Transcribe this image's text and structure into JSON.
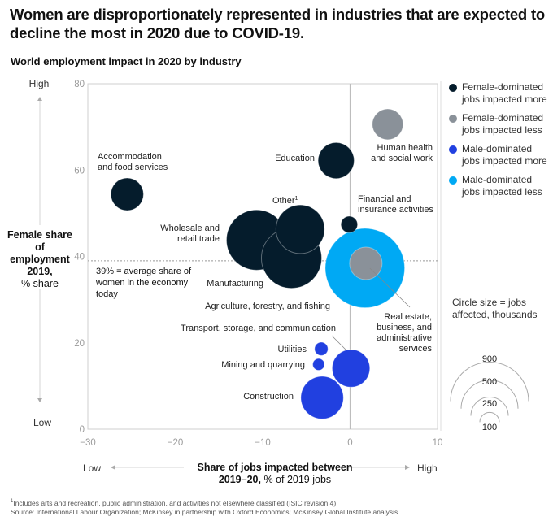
{
  "title": "Women are disproportionately represented in industries that are expected to decline the most in 2020 due to COVID-19.",
  "subtitle": "World employment impact in 2020 by industry",
  "y_axis": {
    "high": "High",
    "low": "Low",
    "label_bold": "Female share of employment 2019,",
    "label_unit": "% share"
  },
  "x_axis": {
    "low": "Low",
    "high": "High",
    "label_bold": "Share of jobs impacted between 2019–20,",
    "label_unit": "% of 2019 jobs"
  },
  "average_note": "39% = average share of women in the economy today",
  "legend": [
    {
      "label": "Female-dominated jobs impacted more",
      "color": "#051c2c"
    },
    {
      "label": "Female-dominated jobs impacted less",
      "color": "#8a9199"
    },
    {
      "label": "Male-dominated jobs impacted more",
      "color": "#2140e0"
    },
    {
      "label": "Male-dominated jobs impacted less",
      "color": "#00a9f4"
    }
  ],
  "size_legend": {
    "title": "Circle size = jobs affected, thousands",
    "values": [
      "900",
      "500",
      "250",
      "100"
    ]
  },
  "footnote": "Includes arts and recreation, public administration, and activities not elsewhere classified (ISIC revision 4).",
  "source": "Source: International Labour Organization; McKinsey in partnership with Oxford Economics; McKinsey Global Institute analysis",
  "chart_data": {
    "type": "scatter",
    "subtype": "bubble",
    "title": "World employment impact in 2020 by industry",
    "xlabel": "Share of jobs impacted between 2019–20, % of 2019 jobs",
    "ylabel": "Female share of employment 2019, % share",
    "xlim": [
      -30,
      10
    ],
    "ylim": [
      0,
      80
    ],
    "x_ticks": [
      "−30",
      "−20",
      "−10",
      "0",
      "10"
    ],
    "y_ticks": [
      "0",
      "20",
      "40",
      "60",
      "80"
    ],
    "reference_line_y": 39,
    "reference_line_x": 0,
    "grid": false,
    "legend_position": "right",
    "points": [
      {
        "name": "Agriculture, forestry, and fishing",
        "x": 1.7,
        "y": 37.3,
        "size": 1600,
        "category": "Male-dominated jobs impacted less",
        "color": "#00a9f4"
      },
      {
        "name": "Real estate, business, and administrative services",
        "x": 1.8,
        "y": 38.4,
        "size": 270,
        "category": "Female-dominated jobs impacted less",
        "color": "#8a9199"
      },
      {
        "name": "Accommodation and food services",
        "x": -25.5,
        "y": 54.4,
        "size": 270,
        "category": "Female-dominated jobs impacted more",
        "color": "#051c2c"
      },
      {
        "name": "Education",
        "x": -1.6,
        "y": 62.2,
        "size": 330,
        "category": "Female-dominated jobs impacted more",
        "color": "#051c2c"
      },
      {
        "name": "Human health and social work",
        "x": 4.3,
        "y": 70.6,
        "size": 240,
        "category": "Female-dominated jobs impacted less",
        "color": "#8a9199"
      },
      {
        "name": "Wholesale and retail trade",
        "x": -10.7,
        "y": 43.8,
        "size": 920,
        "category": "Female-dominated jobs impacted more",
        "color": "#051c2c"
      },
      {
        "name": "Manufacturing",
        "x": -6.7,
        "y": 39.6,
        "size": 920,
        "category": "Female-dominated jobs impacted more",
        "color": "#051c2c"
      },
      {
        "name": "Other",
        "x": -5.7,
        "y": 46.3,
        "size": 600,
        "category": "Female-dominated jobs impacted more",
        "color": "#051c2c",
        "footnote": "1"
      },
      {
        "name": "Financial and insurance activities",
        "x": -0.1,
        "y": 47.4,
        "size": 70,
        "category": "Female-dominated jobs impacted more",
        "color": "#051c2c"
      },
      {
        "name": "Transport, storage, and communication",
        "x": 0.1,
        "y": 14.1,
        "size": 360,
        "category": "Male-dominated jobs impacted more",
        "color": "#2140e0"
      },
      {
        "name": "Utilities",
        "x": -3.3,
        "y": 18.6,
        "size": 45,
        "category": "Male-dominated jobs impacted more",
        "color": "#2140e0"
      },
      {
        "name": "Mining and quarrying",
        "x": -3.6,
        "y": 15.0,
        "size": 35,
        "category": "Male-dominated jobs impacted more",
        "color": "#2140e0"
      },
      {
        "name": "Construction",
        "x": -3.2,
        "y": 7.3,
        "size": 460,
        "category": "Male-dominated jobs impacted more",
        "color": "#2140e0"
      }
    ]
  }
}
